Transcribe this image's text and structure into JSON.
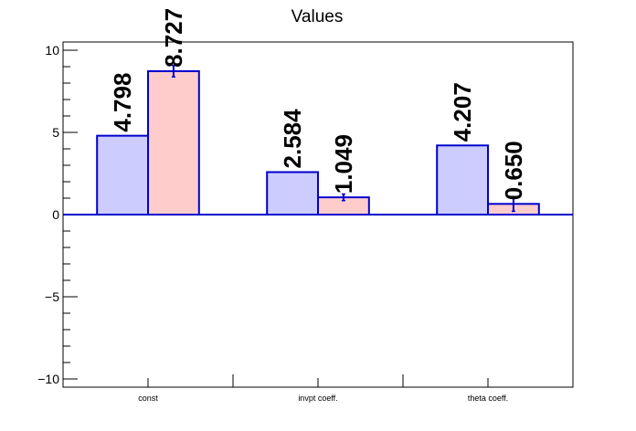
{
  "chart_data": {
    "type": "bar",
    "title": "Values",
    "xlabel": "",
    "ylabel": "",
    "categories": [
      "const",
      "invpt coeff.",
      "theta coeff."
    ],
    "series": [
      {
        "values": [
          4.798,
          2.584,
          4.207
        ],
        "errors": [
          0,
          0,
          0
        ],
        "labels": [
          "4.798",
          "2.584",
          "4.207"
        ],
        "color": "#ccccff"
      },
      {
        "values": [
          8.727,
          1.049,
          0.65
        ],
        "errors": [
          0.35,
          0.2,
          0.45
        ],
        "labels": [
          "8.727",
          "1.049",
          "0.650"
        ],
        "color": "#ffcccc"
      }
    ],
    "ylim": [
      -10.5,
      10.5
    ],
    "yticks": [
      -10,
      -5,
      0,
      5,
      10
    ],
    "ytick_labels": [
      "−10",
      "−5",
      "0",
      "5",
      "10"
    ],
    "edge_color": "#0000cc",
    "grid": false,
    "legend": "none"
  }
}
